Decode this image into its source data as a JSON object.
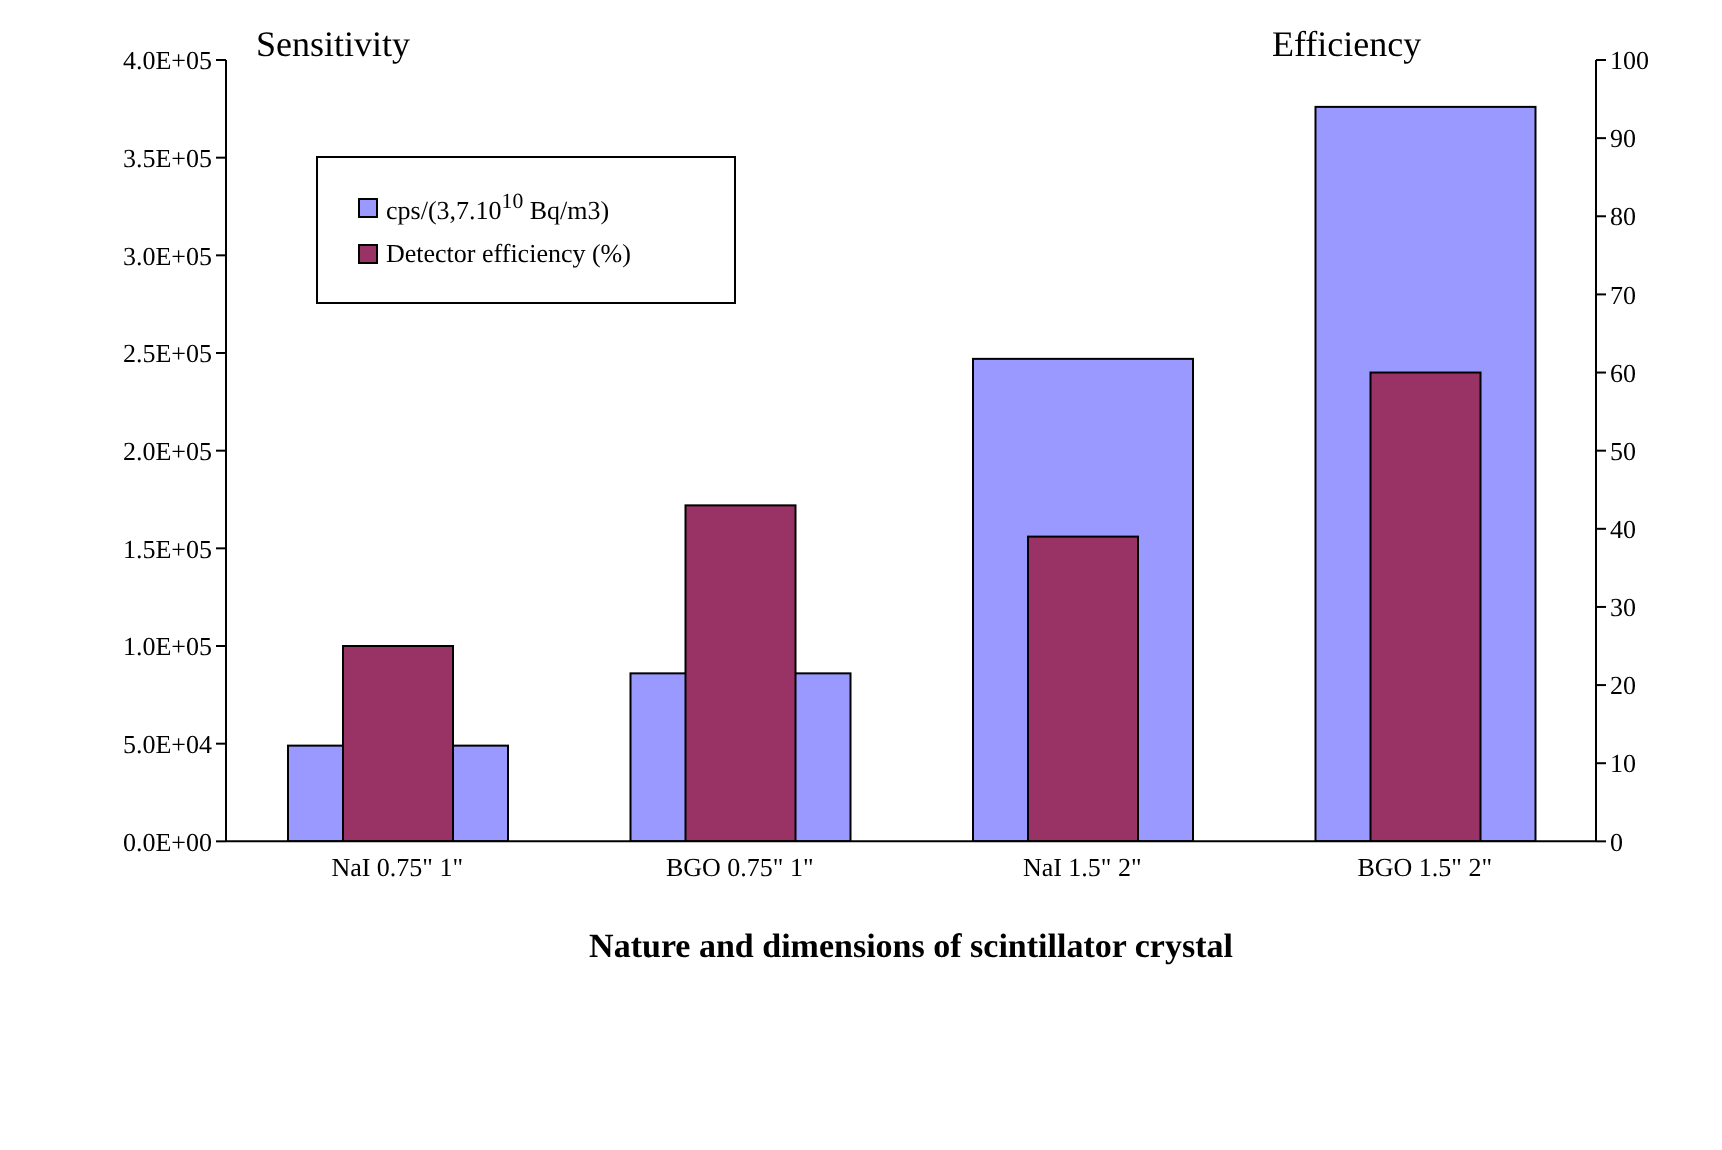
{
  "chart_data": {
    "type": "bar",
    "xlabel": "Nature and dimensions of scintillator crystal",
    "ylabel": "Sensitivity",
    "y2label": "Efficiency",
    "categories": [
      "NaI 0.75\" 1\"",
      "BGO 0.75\" 1\"",
      "NaI 1.5\" 2\"",
      "BGO 1.5\" 2\""
    ],
    "series": [
      {
        "name": "cps/(3,7.10$^{10}$ Bq/m3)",
        "color": "#9999ff",
        "values": [
          49000,
          86000,
          247000,
          376000
        ]
      },
      {
        "name": "Detector efficiency (%)",
        "color": "#993366",
        "axis": "y2",
        "values": [
          25,
          43,
          39,
          60
        ]
      }
    ],
    "ylim": [
      0,
      400000
    ],
    "yticks": [
      {
        "value": 0,
        "label": "0.0E+00"
      },
      {
        "value": 50000,
        "label": "5.0E+04"
      },
      {
        "value": 100000,
        "label": "1.0E+05"
      },
      {
        "value": 150000,
        "label": "1.5E+05"
      },
      {
        "value": 200000,
        "label": "2.0E+05"
      },
      {
        "value": 250000,
        "label": "2.5E+05"
      },
      {
        "value": 300000,
        "label": "3.0E+05"
      },
      {
        "value": 350000,
        "label": "3.5E+05"
      },
      {
        "value": 400000,
        "label": "4.0E+05"
      }
    ],
    "y2lim": [
      0,
      100
    ],
    "y2ticks": [
      0,
      10,
      20,
      30,
      40,
      50,
      60,
      70,
      80,
      90,
      100
    ],
    "legend": "top left"
  }
}
